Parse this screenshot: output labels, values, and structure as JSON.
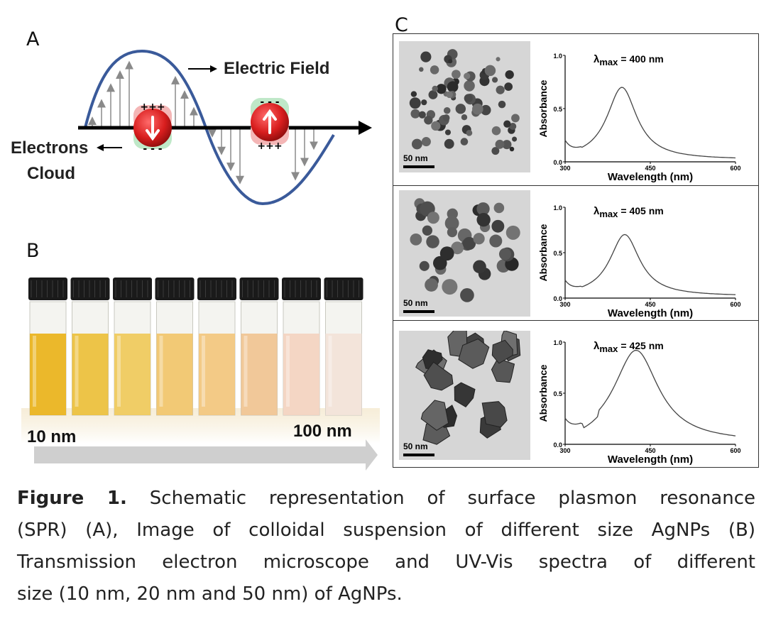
{
  "panel_a": {
    "letter": "A",
    "electric_field_label": "Electric Field",
    "electrons_label_line1": "Electrons",
    "electrons_label_line2": "Cloud",
    "charge_plus": "+++",
    "charge_minus": "- - -"
  },
  "panel_b": {
    "letter": "B",
    "size_start": "10 nm",
    "size_end": "100 nm",
    "vial_colors": [
      "#e9b21a",
      "#ecbf3a",
      "#efc95a",
      "#f1c46a",
      "#f2c57d",
      "#f0c391",
      "#f3d3c0",
      "#f2e2d8"
    ]
  },
  "panel_c": {
    "letter": "C",
    "rows": [
      {
        "scale_label": "50 nm",
        "lambda_symbol": "λ",
        "lambda_sub": "max",
        "lambda_value": "= 400 nm",
        "peak": 400,
        "ylabel": "Absorbance",
        "xlabel": "Wavelength (nm)",
        "yticks": [
          "0.0",
          "0.5",
          "1.0"
        ],
        "xticks": [
          "300",
          "450",
          "600"
        ]
      },
      {
        "scale_label": "50 nm",
        "lambda_symbol": "λ",
        "lambda_sub": "max",
        "lambda_value": "= 405 nm",
        "peak": 405,
        "ylabel": "Absorbance",
        "xlabel": "Wavelength (nm)",
        "yticks": [
          "0.0",
          "0.5",
          "1.0"
        ],
        "xticks": [
          "300",
          "450",
          "600"
        ]
      },
      {
        "scale_label": "50 nm",
        "lambda_symbol": "λ",
        "lambda_sub": "max",
        "lambda_value": "= 425 nm",
        "peak": 425,
        "ylabel": "Absorbance",
        "xlabel": "Wavelength (nm)",
        "yticks": [
          "0.0",
          "0.5",
          "1.0"
        ],
        "xticks": [
          "300",
          "450",
          "600"
        ]
      }
    ]
  },
  "caption": {
    "label": "Figure 1.",
    "line1": "Schematic representation of surface plasmon resonance",
    "line2": "(SPR) (A), Image of colloidal suspension of different size AgNPs (B)",
    "line3": "Transmission electron microscope and UV-Vis spectra of different",
    "line4": "size (10 nm, 20 nm and 50 nm) of  AgNPs."
  },
  "colors": {
    "wave": "#3a5a9a",
    "arrow_gray": "#8a8a8a",
    "particle_red": "#d81e1e",
    "halo_pink": "#f4b6b6",
    "halo_green": "#bfe8c8"
  }
}
